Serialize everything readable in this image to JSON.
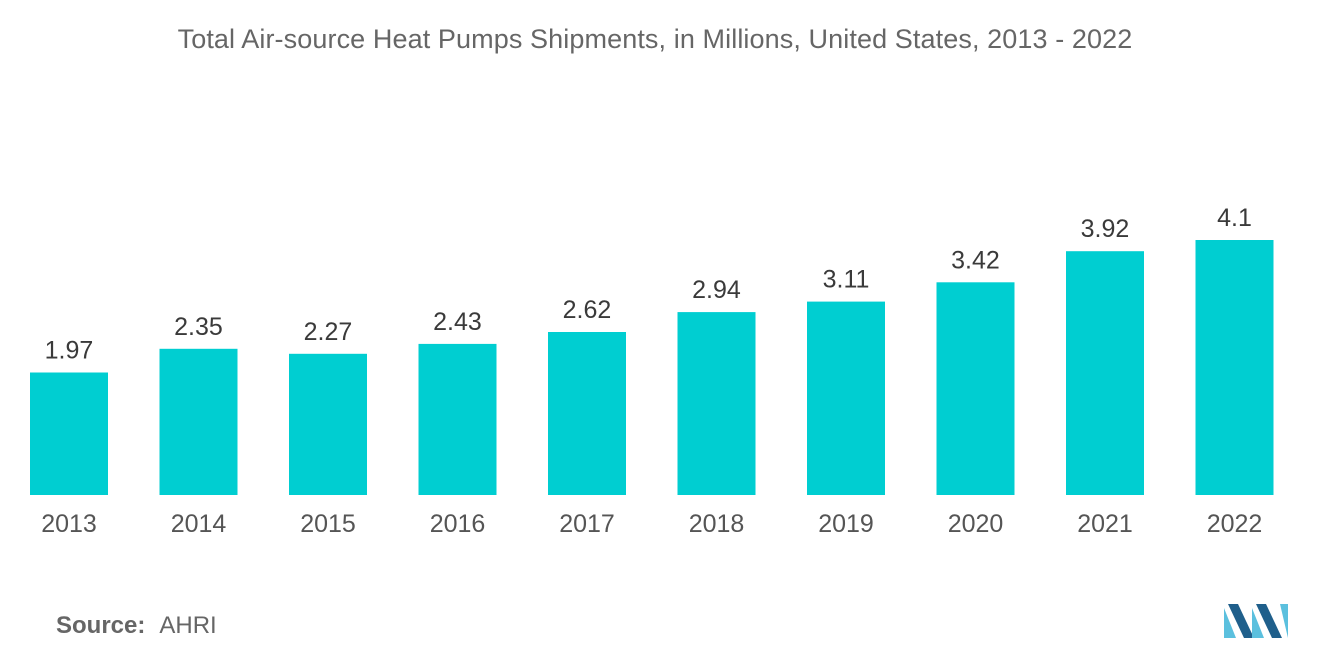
{
  "chart_data": {
    "type": "bar",
    "title": "Total Air-source Heat Pumps Shipments, in Millions, United States, 2013 - 2022",
    "categories": [
      "2013",
      "2014",
      "2015",
      "2016",
      "2017",
      "2018",
      "2019",
      "2020",
      "2021",
      "2022"
    ],
    "values": [
      1.97,
      2.35,
      2.27,
      2.43,
      2.62,
      2.94,
      3.11,
      3.42,
      3.92,
      4.1
    ],
    "value_labels": [
      "1.97",
      "2.35",
      "2.27",
      "2.43",
      "2.62",
      "2.94",
      "3.11",
      "3.42",
      "3.92",
      "4.1"
    ],
    "xlabel": "",
    "ylabel": "",
    "ylim": [
      0,
      4.1
    ],
    "grid": false,
    "legend": "none",
    "bar_color": "#00CED1"
  },
  "source": {
    "label": "Source:",
    "value": "AHRI"
  },
  "logo": {
    "icon": "mordor-intelligence-logo-icon",
    "colors": [
      "#1f5f8b",
      "#5bc0de"
    ]
  }
}
